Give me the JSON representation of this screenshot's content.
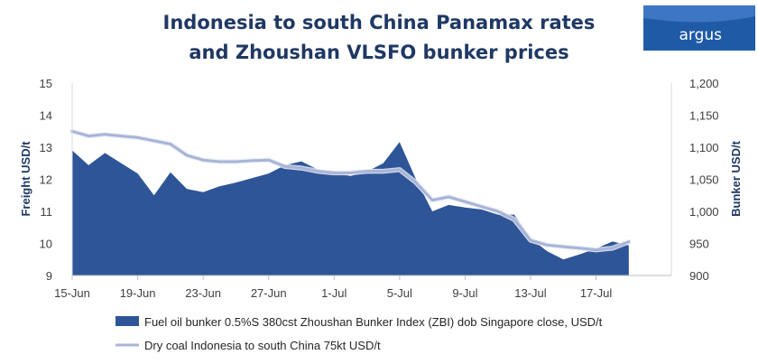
{
  "logo": {
    "text": "argus"
  },
  "chart_data": {
    "type": "area",
    "title": [
      "Indonesia to south China Panamax rates",
      "and Zhoushan VLSFO bunker prices"
    ],
    "y_left": {
      "label": "Freight USD/t",
      "min": 9,
      "max": 15,
      "ticks": [
        9,
        10,
        11,
        12,
        13,
        14,
        15
      ]
    },
    "y_right": {
      "label": "Bunker USD/t",
      "min": 900,
      "max": 1200,
      "ticks": [
        "900",
        "950",
        "1,000",
        "1,050",
        "1,100",
        "1,150",
        "1,200"
      ]
    },
    "x_range": [
      0,
      36.6
    ],
    "x_ticks": [
      {
        "day": 0,
        "label": "15-Jun"
      },
      {
        "day": 4,
        "label": "19-Jun"
      },
      {
        "day": 8,
        "label": "23-Jun"
      },
      {
        "day": 12,
        "label": "27-Jun"
      },
      {
        "day": 16,
        "label": "1-Jul"
      },
      {
        "day": 20,
        "label": "5-Jul"
      },
      {
        "day": 24,
        "label": "9-Jul"
      },
      {
        "day": 28,
        "label": "13-Jul"
      },
      {
        "day": 32,
        "label": "17-Jul"
      }
    ],
    "grid": false,
    "legend_position": "bottom",
    "series": [
      {
        "name": "Fuel oil bunker 0.5%S 380cst Zhoushan Bunker Index (ZBI) dob Singapore close, USD/t",
        "axis": "right",
        "kind": "area",
        "color": "#2e5597",
        "points": [
          [
            0,
            1095
          ],
          [
            1,
            1072
          ],
          [
            2,
            1091
          ],
          [
            3,
            1075
          ],
          [
            4,
            1059
          ],
          [
            5,
            1025
          ],
          [
            6,
            1061
          ],
          [
            7,
            1035
          ],
          [
            8,
            1030
          ],
          [
            9,
            1039
          ],
          [
            10,
            1045
          ],
          [
            11,
            1052
          ],
          [
            12,
            1059
          ],
          [
            13,
            1072
          ],
          [
            14,
            1078
          ],
          [
            15,
            1065
          ],
          [
            16,
            1061
          ],
          [
            17,
            1055
          ],
          [
            18,
            1062
          ],
          [
            19,
            1075
          ],
          [
            20,
            1108
          ],
          [
            21,
            1050
          ],
          [
            22,
            1000
          ],
          [
            23,
            1010
          ],
          [
            24,
            1006
          ],
          [
            25,
            1003
          ],
          [
            26,
            995
          ],
          [
            27,
            995
          ],
          [
            28,
            958
          ],
          [
            29,
            938
          ],
          [
            30,
            925
          ],
          [
            31,
            933
          ],
          [
            32,
            942
          ],
          [
            33,
            953
          ],
          [
            34,
            947
          ]
        ]
      },
      {
        "name": "Dry coal Indonesia to south China 75kt USD/t",
        "axis": "left",
        "kind": "line",
        "color": "#a8b4d8",
        "points": [
          [
            0,
            13.5
          ],
          [
            1,
            13.35
          ],
          [
            2,
            13.4
          ],
          [
            3,
            13.35
          ],
          [
            4,
            13.3
          ],
          [
            5,
            13.2
          ],
          [
            6,
            13.1
          ],
          [
            7,
            12.75
          ],
          [
            8,
            12.6
          ],
          [
            9,
            12.55
          ],
          [
            10,
            12.55
          ],
          [
            11,
            12.58
          ],
          [
            12,
            12.6
          ],
          [
            13,
            12.4
          ],
          [
            14,
            12.35
          ],
          [
            15,
            12.25
          ],
          [
            16,
            12.2
          ],
          [
            17,
            12.2
          ],
          [
            18,
            12.25
          ],
          [
            19,
            12.25
          ],
          [
            20,
            12.3
          ],
          [
            21,
            11.9
          ],
          [
            22,
            11.35
          ],
          [
            23,
            11.45
          ],
          [
            24,
            11.3
          ],
          [
            25,
            11.15
          ],
          [
            26,
            11.0
          ],
          [
            27,
            10.75
          ],
          [
            28,
            10.1
          ],
          [
            29,
            9.95
          ],
          [
            30,
            9.9
          ],
          [
            31,
            9.85
          ],
          [
            32,
            9.8
          ],
          [
            33,
            9.85
          ],
          [
            34,
            10.05
          ]
        ]
      }
    ]
  }
}
